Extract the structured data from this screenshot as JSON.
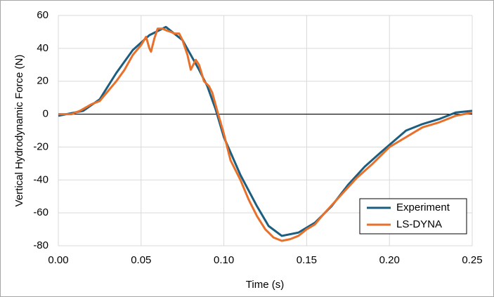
{
  "chart_data": {
    "type": "line",
    "x_label": "Time (s)",
    "y_label": "Vertical Hydrodynamic Force (N)",
    "xlim": [
      0,
      0.25
    ],
    "ylim": [
      -80,
      60
    ],
    "xticks": [
      {
        "value": 0,
        "label": "0.00"
      },
      {
        "value": 0.05,
        "label": "0.05"
      },
      {
        "value": 0.1,
        "label": "0.10"
      },
      {
        "value": 0.15,
        "label": "0.15"
      },
      {
        "value": 0.2,
        "label": "0.20"
      },
      {
        "value": 0.25,
        "label": "0.25"
      }
    ],
    "yticks": [
      -80,
      -60,
      -40,
      -20,
      0,
      20,
      40,
      60
    ],
    "grid": true,
    "legend": "lower right",
    "series": [
      {
        "name": "Experiment",
        "color": "#1b5e80",
        "x": [
          0,
          0.015,
          0.025,
          0.035,
          0.045,
          0.055,
          0.065,
          0.075,
          0.085,
          0.09,
          0.095,
          0.1,
          0.11,
          0.12,
          0.127,
          0.135,
          0.145,
          0.155,
          0.165,
          0.175,
          0.185,
          0.195,
          0.21,
          0.22,
          0.23,
          0.24,
          0.25
        ],
        "values": [
          -1,
          2,
          9,
          25,
          39,
          48,
          53,
          45,
          27,
          17,
          3,
          -14,
          -37,
          -56,
          -68,
          -74,
          -72,
          -66,
          -56,
          -43,
          -32,
          -23,
          -10,
          -6,
          -3,
          1,
          2
        ]
      },
      {
        "name": "LS-DYNA",
        "color": "#e8702a",
        "x": [
          0,
          0.008,
          0.013,
          0.02,
          0.025,
          0.03,
          0.035,
          0.04,
          0.045,
          0.05,
          0.053,
          0.055,
          0.056,
          0.058,
          0.06,
          0.063,
          0.065,
          0.068,
          0.07,
          0.073,
          0.075,
          0.078,
          0.08,
          0.083,
          0.085,
          0.088,
          0.091,
          0.093,
          0.096,
          0.1,
          0.104,
          0.11,
          0.115,
          0.12,
          0.125,
          0.13,
          0.135,
          0.14,
          0.145,
          0.15,
          0.155,
          0.16,
          0.17,
          0.18,
          0.19,
          0.2,
          0.21,
          0.215,
          0.22,
          0.23,
          0.24,
          0.25
        ],
        "values": [
          0,
          0,
          2,
          6,
          8,
          14,
          20,
          27,
          36,
          42,
          47,
          40,
          38,
          46,
          52,
          52,
          51,
          50,
          49,
          49,
          45,
          36,
          27,
          33,
          30,
          20,
          17,
          13,
          2,
          -12,
          -28,
          -40,
          -52,
          -62,
          -70,
          -75,
          -77,
          -76,
          -74,
          -70,
          -67,
          -61,
          -50,
          -39,
          -30,
          -20,
          -14,
          -11,
          -8,
          -5,
          -1,
          1
        ]
      }
    ]
  }
}
